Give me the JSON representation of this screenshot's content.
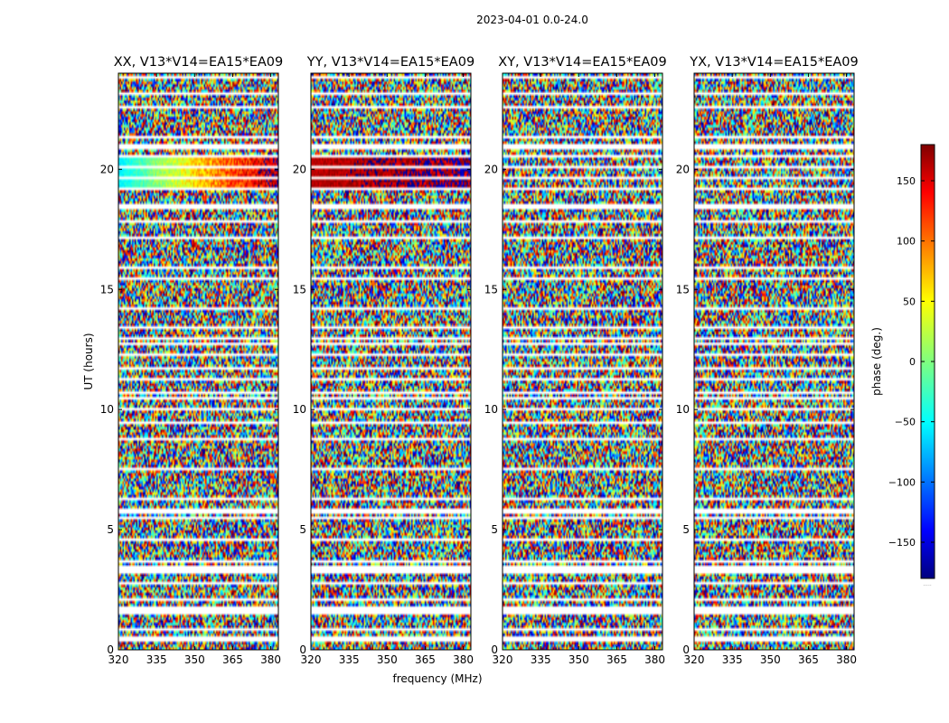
{
  "suptitle": "2023-04-01 0.0-24.0",
  "xlabel": "frequency (MHz)",
  "ylabel": "UT (hours)",
  "colorbar_label": "phase (deg.)",
  "colorbar_footnote": ".....",
  "chart_data": {
    "type": "heatmap",
    "title": "2023-04-01 0.0-24.0",
    "x_range_mhz": [
      320,
      383
    ],
    "y_range_hours": [
      0,
      24
    ],
    "x_ticks": [
      "320",
      "335",
      "350",
      "365",
      "380"
    ],
    "x_tick_values": [
      320,
      335,
      350,
      365,
      380
    ],
    "y_ticks": [
      "0",
      "5",
      "10",
      "15",
      "20"
    ],
    "y_tick_values": [
      0,
      5,
      10,
      15,
      20
    ],
    "colorbar": {
      "label": "phase (deg.)",
      "range": [
        -180,
        180
      ],
      "ticks": [
        "−150",
        "−100",
        "−50",
        "0",
        "50",
        "100",
        "150"
      ],
      "tick_values": [
        -150,
        -100,
        -50,
        0,
        50,
        100,
        150
      ],
      "colormap": "jet"
    },
    "flagged_time_gaps_hours": [
      0.55,
      1.55,
      1.7,
      2.75,
      3.2,
      3.5,
      3.65,
      4.55,
      5.5,
      5.75,
      9.45,
      10.75,
      12.25,
      12.75,
      13.45,
      17.8,
      18.45,
      19.2,
      20.6,
      21.0,
      23.2
    ],
    "panels": [
      {
        "title": "XX, V13*V14=EA15*EA09",
        "coherent_band": {
          "ut": [
            19.2,
            20.6
          ],
          "phase_start": -50,
          "phase_end": 170
        }
      },
      {
        "title": "YY, V13*V14=EA15*EA09",
        "coherent_band": {
          "ut": [
            19.2,
            20.6
          ],
          "phase_start": 160,
          "phase_end": 175
        }
      },
      {
        "title": "XY, V13*V14=EA15*EA09",
        "coherent_band": null
      },
      {
        "title": "YX, V13*V14=EA15*EA09",
        "coherent_band": null
      }
    ]
  }
}
